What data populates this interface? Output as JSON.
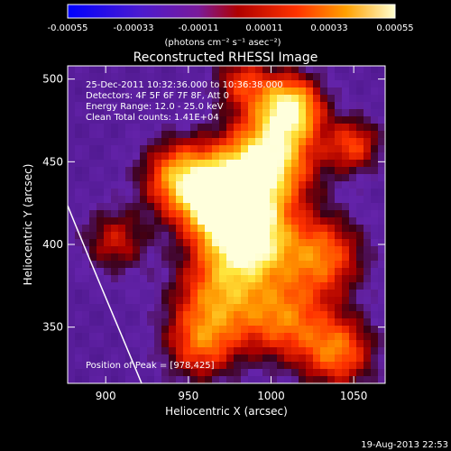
{
  "chart_data": {
    "type": "heatmap",
    "title": "Reconstructed RHESSI Image",
    "xlabel": "Heliocentric X (arcsec)",
    "ylabel": "Heliocentric Y (arcsec)",
    "xlim": [
      877,
      1069
    ],
    "ylim": [
      316,
      508
    ],
    "xticks": [
      "900",
      "950",
      "1000",
      "1050"
    ],
    "yticks": [
      "350",
      "400",
      "450",
      "500"
    ],
    "colorbar": {
      "label": "(photons cm⁻² s⁻¹ asec⁻²)",
      "range": [
        -0.00055,
        0.00055
      ],
      "tick_labels": [
        "-0.00055",
        "-0.00033",
        "-0.00011",
        "0.00011",
        "0.00033",
        "0.00055"
      ],
      "colors": [
        "#0000ff",
        "#6a1fb0",
        "#a01010",
        "#ff2a00",
        "#ffb000",
        "#ffffcc"
      ]
    },
    "annotations": [
      "25-Dec-2011 10:32:36.000 to 10:36:38.000",
      "Detectors: 4F 5F 6F 7F 8F, Att 0",
      "Energy Range: 12.0 - 25.0 keV",
      "Clean    Total counts: 1.41E+04"
    ],
    "peak_label": "Position of Peak = [978,425]",
    "peak": [
      978,
      425
    ],
    "limb_curve_note": "white solar limb arc at lower left"
  },
  "footer": {
    "timestamp": "19-Aug-2013 22:53"
  }
}
